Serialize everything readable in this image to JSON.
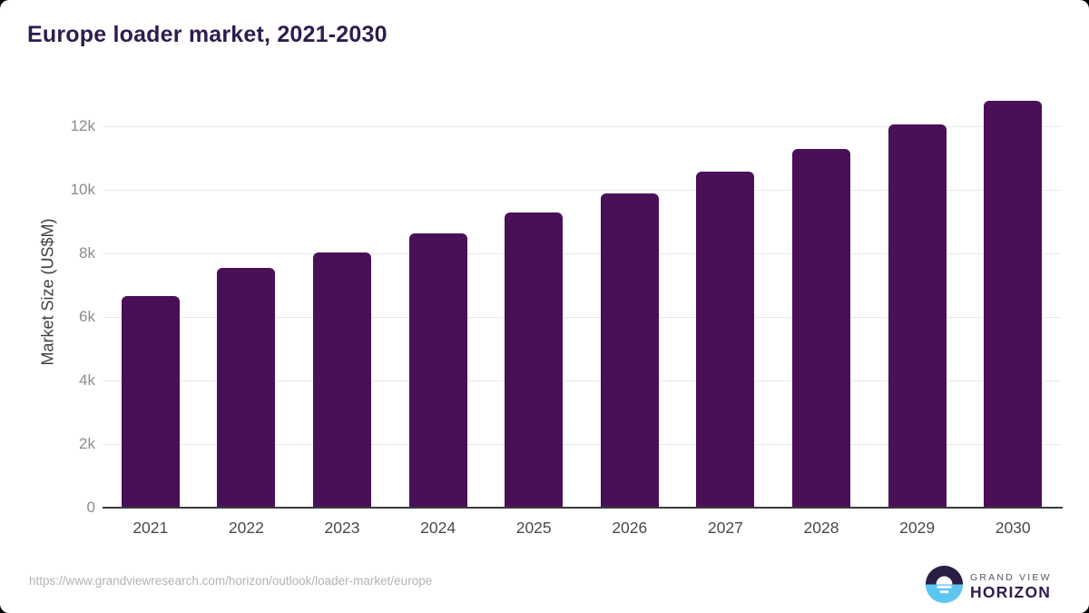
{
  "title": {
    "text": "Europe loader market, 2021-2030"
  },
  "chart_data": {
    "type": "bar",
    "title": "Europe loader market, 2021-2030",
    "categories": [
      "2021",
      "2022",
      "2023",
      "2024",
      "2025",
      "2026",
      "2027",
      "2028",
      "2029",
      "2030"
    ],
    "values": [
      6650,
      7530,
      8030,
      8620,
      9280,
      9880,
      10560,
      11290,
      12050,
      12800
    ],
    "xlabel": "",
    "ylabel": "Market Size (US$M)",
    "ylim": [
      0,
      13000
    ],
    "ytick_values": [
      0,
      2000,
      4000,
      6000,
      8000,
      10000,
      12000
    ],
    "ytick_labels": [
      "0",
      "2k",
      "4k",
      "6k",
      "8k",
      "10k",
      "12k"
    ],
    "grid": "horizontal-only",
    "legend": "none",
    "bar_color": "#4a1057",
    "gridline_color": "#e9e9e9",
    "axis_line_color": "#3b3b3b"
  },
  "footer": {
    "source_url": "https://www.grandviewresearch.com/horizon/outlook/loader-market/europe",
    "logo": {
      "icon": "sunrise-horizon-icon",
      "line1": "GRAND VIEW",
      "line2": "HORIZON",
      "icon_dark_color": "#2b1e45",
      "icon_blue_color": "#5cc6f1"
    }
  }
}
